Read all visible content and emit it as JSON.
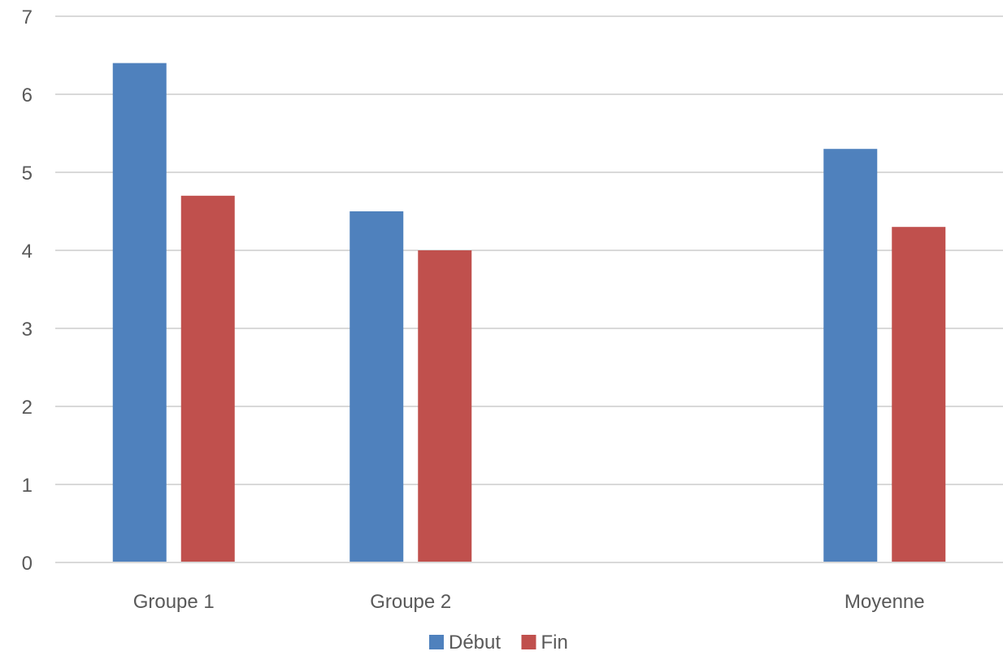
{
  "chart_data": {
    "type": "bar",
    "categories": [
      "Groupe 1",
      "Groupe 2",
      "",
      "Moyenne"
    ],
    "series": [
      {
        "name": "Début",
        "values": [
          6.4,
          4.5,
          null,
          5.3
        ],
        "color": "#4F81BD"
      },
      {
        "name": "Fin",
        "values": [
          4.7,
          4.0,
          null,
          4.3
        ],
        "color": "#C0504D"
      }
    ],
    "ylim": [
      0,
      7
    ],
    "yticks": [
      0,
      1,
      2,
      3,
      4,
      5,
      6,
      7
    ],
    "grid": true,
    "legend": "bottom",
    "title": "",
    "xlabel": "",
    "ylabel": ""
  }
}
